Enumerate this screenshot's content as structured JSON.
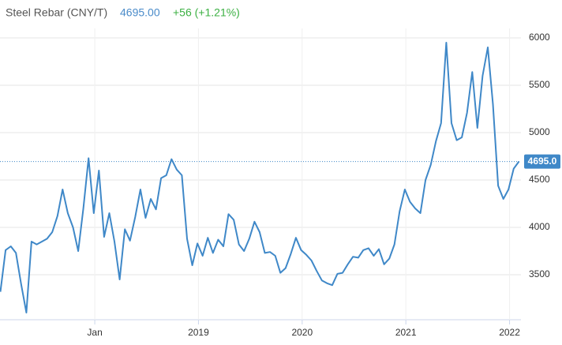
{
  "header": {
    "name": "Steel Rebar (CNY/T)",
    "price": "4695.00",
    "change": "+56 (+1.21%)"
  },
  "chart_data": {
    "type": "line",
    "x": [
      2017.09,
      2017.14,
      2017.19,
      2017.24,
      2017.29,
      2017.34,
      2017.39,
      2017.44,
      2017.49,
      2017.54,
      2017.59,
      2017.64,
      2017.69,
      2017.74,
      2017.79,
      2017.84,
      2017.89,
      2017.94,
      2017.99,
      2018.04,
      2018.09,
      2018.14,
      2018.19,
      2018.24,
      2018.29,
      2018.34,
      2018.39,
      2018.44,
      2018.49,
      2018.54,
      2018.59,
      2018.64,
      2018.69,
      2018.74,
      2018.79,
      2018.84,
      2018.89,
      2018.94,
      2018.99,
      2019.04,
      2019.09,
      2019.14,
      2019.19,
      2019.24,
      2019.29,
      2019.34,
      2019.39,
      2019.44,
      2019.49,
      2019.54,
      2019.59,
      2019.64,
      2019.69,
      2019.74,
      2019.79,
      2019.84,
      2019.89,
      2019.94,
      2019.99,
      2020.04,
      2020.09,
      2020.14,
      2020.19,
      2020.24,
      2020.29,
      2020.34,
      2020.39,
      2020.44,
      2020.49,
      2020.54,
      2020.59,
      2020.64,
      2020.69,
      2020.74,
      2020.79,
      2020.84,
      2020.89,
      2020.94,
      2020.99,
      2021.04,
      2021.09,
      2021.14,
      2021.19,
      2021.24,
      2021.29,
      2021.34,
      2021.39,
      2021.44,
      2021.49,
      2021.54,
      2021.59,
      2021.64,
      2021.69,
      2021.74,
      2021.79,
      2021.84,
      2021.89,
      2021.94,
      2021.99,
      2022.04,
      2022.09
    ],
    "series": [
      {
        "name": "Steel Rebar",
        "color": "#3f88c8",
        "values": [
          3320,
          3760,
          3800,
          3730,
          3400,
          3100,
          3850,
          3820,
          3850,
          3880,
          3950,
          4120,
          4400,
          4150,
          4000,
          3750,
          4200,
          4730,
          4150,
          4600,
          3900,
          4150,
          3850,
          3450,
          3980,
          3860,
          4110,
          4400,
          4100,
          4300,
          4190,
          4520,
          4550,
          4720,
          4610,
          4550,
          3880,
          3600,
          3830,
          3700,
          3890,
          3730,
          3870,
          3800,
          4140,
          4080,
          3820,
          3750,
          3880,
          4060,
          3950,
          3730,
          3740,
          3700,
          3520,
          3570,
          3720,
          3890,
          3760,
          3710,
          3650,
          3540,
          3440,
          3410,
          3390,
          3510,
          3520,
          3610,
          3690,
          3680,
          3760,
          3780,
          3700,
          3770,
          3610,
          3670,
          3820,
          4170,
          4400,
          4270,
          4200,
          4150,
          4500,
          4660,
          4910,
          5100,
          5950,
          5100,
          4920,
          4950,
          5210,
          5640,
          5050,
          5600,
          5900,
          5300,
          4440,
          4300,
          4400,
          4620,
          4695
        ]
      }
    ],
    "last_price": {
      "value": 4695,
      "label": "4695.0"
    },
    "xlim": [
      2017.086,
      2022.11
    ],
    "xticks": [
      {
        "value": 2018,
        "label": "Jan"
      },
      2019,
      2020,
      2021,
      2022
    ],
    "ylim": [
      3025,
      6100
    ],
    "yticks": [
      3500,
      4000,
      4500,
      5000,
      5500,
      6000
    ],
    "grid": true
  }
}
